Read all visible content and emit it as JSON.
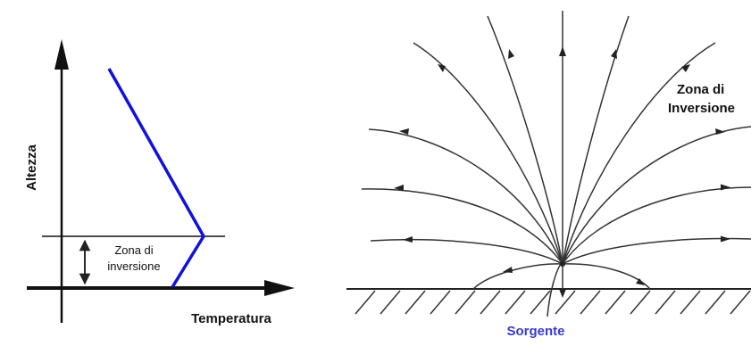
{
  "left_panel": {
    "y_axis_label": "Altezza",
    "x_axis_label": "Temperatura",
    "zone_label_line1": "Zona di",
    "zone_label_line2": "inversione",
    "profile_color": "#1010e0"
  },
  "right_panel": {
    "zone_label_line1": "Zona di",
    "zone_label_line2": "Inversione",
    "source_label": "Sorgente",
    "source_color": "#3a3ad0",
    "stream_color": "#333333"
  }
}
